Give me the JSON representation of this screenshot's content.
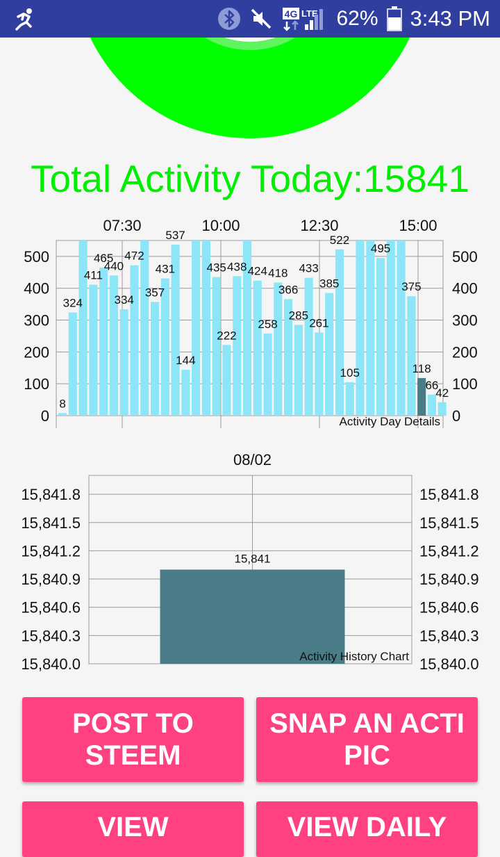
{
  "status_bar": {
    "left_icon": "running-man-icon",
    "icons": [
      "bluetooth-icon",
      "mute-icon",
      "4g-lte-icon",
      "signal-icon"
    ],
    "network_label": "4G",
    "lte_label": "LTE",
    "battery": "62%",
    "battery_level": 0.62,
    "time": "3:43 PM"
  },
  "colors": {
    "status_bar": "#303f9f",
    "ring": "#00ff00",
    "title": "#00ee00",
    "bar": "#8de6f8",
    "bar_selected": "#4a7c88",
    "button": "#ff4081"
  },
  "title": "Total Activity Today:15841",
  "chart_data": [
    {
      "type": "bar",
      "description": "Activity Day Details",
      "top_labels": [
        "07:30",
        "10:00",
        "12:30",
        "15:00"
      ],
      "y_ticks": [
        "0",
        "100",
        "200",
        "300",
        "400",
        "500"
      ],
      "ylim": [
        0,
        550
      ],
      "values": [
        8,
        324,
        550,
        411,
        465,
        440,
        334,
        472,
        550,
        357,
        431,
        537,
        144,
        550,
        550,
        435,
        222,
        438,
        550,
        424,
        258,
        418,
        366,
        285,
        433,
        261,
        385,
        522,
        105,
        550,
        550,
        495,
        550,
        550,
        375,
        118,
        66,
        42
      ],
      "labels": [
        "8",
        "324",
        "",
        "411",
        "465",
        "440",
        "334",
        "472",
        "",
        "357",
        "431",
        "537",
        "144",
        "",
        "",
        "435",
        "222",
        "438",
        "",
        "424",
        "258",
        "418",
        "366",
        "285",
        "433",
        "261",
        "385",
        "522",
        "105",
        "",
        "",
        "495",
        "",
        "",
        "375",
        "118",
        "66",
        "42"
      ],
      "highlight_index": 35,
      "grid": true
    },
    {
      "type": "bar",
      "description": "Activity History Chart",
      "categories": [
        "08/02"
      ],
      "values": [
        15841
      ],
      "value_label": "15,841",
      "y_ticks": [
        "15,840.0",
        "15,840.3",
        "15,840.6",
        "15,840.9",
        "15,841.2",
        "15,841.5",
        "15,841.8"
      ],
      "ylim": [
        15840.0,
        15842.0
      ],
      "grid": true
    }
  ],
  "buttons": [
    {
      "label": "POST TO STEEM"
    },
    {
      "label": "SNAP AN ACTI PIC"
    },
    {
      "label": "VIEW"
    },
    {
      "label": "VIEW DAILY"
    }
  ]
}
